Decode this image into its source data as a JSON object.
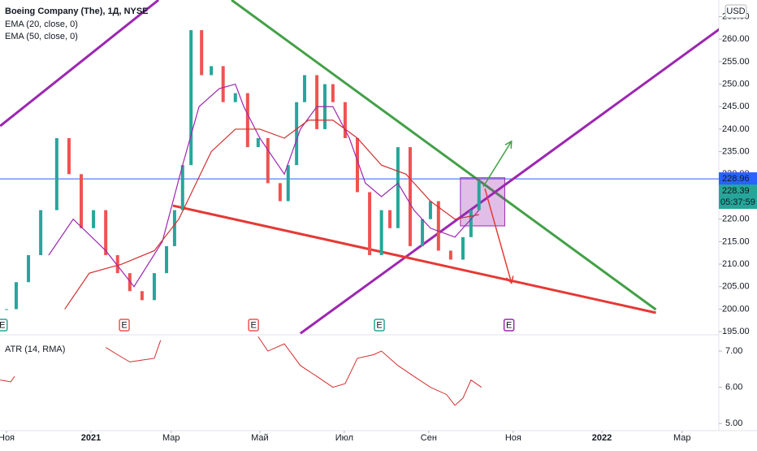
{
  "chart_data": {
    "type": "candlestick",
    "title": "Boeing Company (The), 1Д, NYSE",
    "currency": "USD",
    "xlim": [
      -0.154,
      16.87
    ],
    "xticks": [
      {
        "value": 0,
        "label": "Ноя"
      },
      {
        "value": 2,
        "label": "2021"
      },
      {
        "value": 3.9,
        "label": "Мар"
      },
      {
        "value": 6,
        "label": "Май"
      },
      {
        "value": 8,
        "label": "Июл"
      },
      {
        "value": 10,
        "label": "Сен"
      },
      {
        "value": 12,
        "label": "Ноя"
      },
      {
        "value": 14.1,
        "label": "2022"
      },
      {
        "value": 16,
        "label": "Мар"
      }
    ],
    "ylim": [
      194.3,
      268.7
    ],
    "yticks": [
      {
        "value": 195,
        "label": "195.00"
      },
      {
        "value": 200,
        "label": "200.00"
      },
      {
        "value": 205,
        "label": "205.00"
      },
      {
        "value": 210,
        "label": "210.00"
      },
      {
        "value": 215,
        "label": "215.00"
      },
      {
        "value": 220,
        "label": "220.00"
      },
      {
        "value": 225,
        "label": "225.00"
      },
      {
        "value": 230,
        "label": "230.00"
      },
      {
        "value": 235,
        "label": "235.00"
      },
      {
        "value": 240,
        "label": "240.00"
      },
      {
        "value": 245,
        "label": "245.00"
      },
      {
        "value": 250,
        "label": "250.00"
      },
      {
        "value": 255,
        "label": "255.00"
      },
      {
        "value": 260,
        "label": "260.00"
      },
      {
        "value": 265,
        "label": "265.00"
      }
    ],
    "up_color": "#26a69a",
    "down_color": "#ef5350",
    "x": [
      0,
      0.23,
      0.52,
      0.81,
      1.19,
      1.48,
      1.77,
      2.06,
      2.35,
      2.63,
      2.92,
      3.21,
      3.5,
      3.79,
      3.98,
      4.17,
      4.37,
      4.62,
      4.85,
      5.13,
      5.42,
      5.71,
      5.96,
      6.19,
      6.48,
      6.67,
      6.87,
      7.06,
      7.35,
      7.54,
      7.73,
      8.02,
      8.31,
      8.6,
      8.88,
      9.08,
      9.27,
      9.56,
      9.85,
      10.04,
      10.23,
      10.52,
      10.81,
      11,
      11.19
    ],
    "values": [
      200,
      206,
      212,
      222,
      238,
      230,
      218,
      222,
      212,
      208,
      204,
      202,
      208,
      214,
      222,
      232,
      262,
      252,
      254,
      246,
      248,
      236,
      238,
      228,
      224,
      232,
      246,
      252,
      240,
      250,
      246,
      238,
      226,
      212,
      222,
      218,
      236,
      214,
      220,
      224,
      213,
      211,
      216,
      222,
      228.39
    ],
    "countdown": "05:37:59",
    "price_line": {
      "value": 228.96,
      "color": "#2962ff"
    },
    "series": [
      {
        "name": "EMA (20, close, 0)",
        "color": "#9c27b0",
        "x": [
          1.0,
          1.58,
          2.35,
          3.02,
          3.69,
          4.17,
          4.56,
          5.04,
          5.42,
          5.62,
          6,
          6.58,
          6.96,
          7.35,
          7.73,
          8.12,
          8.5,
          8.88,
          9.27,
          9.65,
          10.04,
          10.62,
          11.19
        ],
        "values": [
          212,
          220,
          213,
          205,
          215,
          232,
          245,
          249,
          250,
          245,
          238,
          230,
          240,
          245,
          245,
          238,
          228,
          225,
          228,
          222,
          218,
          216,
          222
        ]
      },
      {
        "name": "EMA (50, close, 0)",
        "color": "#d32f2f",
        "x": [
          1.38,
          1.96,
          2.73,
          3.5,
          4.08,
          4.85,
          5.42,
          6,
          6.58,
          7.15,
          7.73,
          8.31,
          8.88,
          9.46,
          10.04,
          10.62,
          11.19
        ],
        "values": [
          200,
          208,
          210,
          213,
          220,
          235,
          240,
          240,
          238,
          242,
          242,
          238,
          232,
          230,
          224,
          220,
          221
        ]
      }
    ],
    "drawings": [
      {
        "kind": "line",
        "color": "#43a047",
        "x": [
          5.33,
          15.38
        ],
        "y": [
          268.7,
          199.9
        ]
      },
      {
        "kind": "line",
        "color": "#9c27b0",
        "x": [
          -0.15,
          3.6
        ],
        "y": [
          240.7,
          268.7
        ]
      },
      {
        "kind": "line",
        "color": "#9c27b0",
        "x": [
          6.96,
          17.35
        ],
        "y": [
          194.6,
          265.4
        ]
      },
      {
        "kind": "line",
        "color": "#e53935",
        "x": [
          3.94,
          15.38
        ],
        "y": [
          223.0,
          199.2
        ]
      },
      {
        "kind": "box",
        "color": "#9c27b0",
        "x": [
          10.75,
          11.8
        ],
        "y": [
          229.2,
          218.5
        ]
      },
      {
        "kind": "arrow",
        "color": "#43a047",
        "x": [
          11.29,
          11.96
        ],
        "y": [
          227.2,
          237.3
        ]
      },
      {
        "kind": "arrow",
        "color": "#e53935",
        "x": [
          11.33,
          11.96
        ],
        "y": [
          226.8,
          205.8
        ]
      }
    ],
    "earnings": [
      {
        "x": -0.1,
        "label": "E",
        "color": "#26a69a"
      },
      {
        "x": 2.79,
        "label": "E",
        "color": "#ef5350"
      },
      {
        "x": 5.85,
        "label": "E",
        "color": "#ef5350"
      },
      {
        "x": 8.83,
        "label": "E",
        "color": "#26a69a"
      },
      {
        "x": 11.9,
        "label": "E",
        "color": "#9c27b0"
      }
    ],
    "atr": {
      "name": "ATR (14, RMA)",
      "color": "#d32f2f",
      "ylim": [
        4.8,
        7.45
      ],
      "yticks": [
        {
          "value": 7,
          "label": "7.00"
        },
        {
          "value": 6,
          "label": "6.00"
        },
        {
          "value": 5,
          "label": "5.00"
        }
      ],
      "x": [
        -0.15,
        0.1,
        0.19,
        null,
        2.35,
        2.63,
        2.92,
        3.21,
        3.5,
        3.65,
        null,
        5.96,
        6.19,
        6.58,
        6.96,
        7.35,
        7.73,
        8.02,
        8.31,
        8.69,
        8.88,
        9.27,
        9.65,
        10.04,
        10.42,
        10.62,
        10.81,
        11,
        11.25
      ],
      "values": [
        6.2,
        6.15,
        6.3,
        null,
        7.1,
        6.9,
        6.7,
        6.75,
        6.8,
        7.3,
        null,
        7.4,
        7.0,
        7.2,
        6.6,
        6.3,
        6.0,
        6.1,
        6.8,
        6.9,
        7.0,
        6.6,
        6.3,
        6.0,
        5.8,
        5.5,
        5.7,
        6.2,
        6.0
      ]
    }
  }
}
